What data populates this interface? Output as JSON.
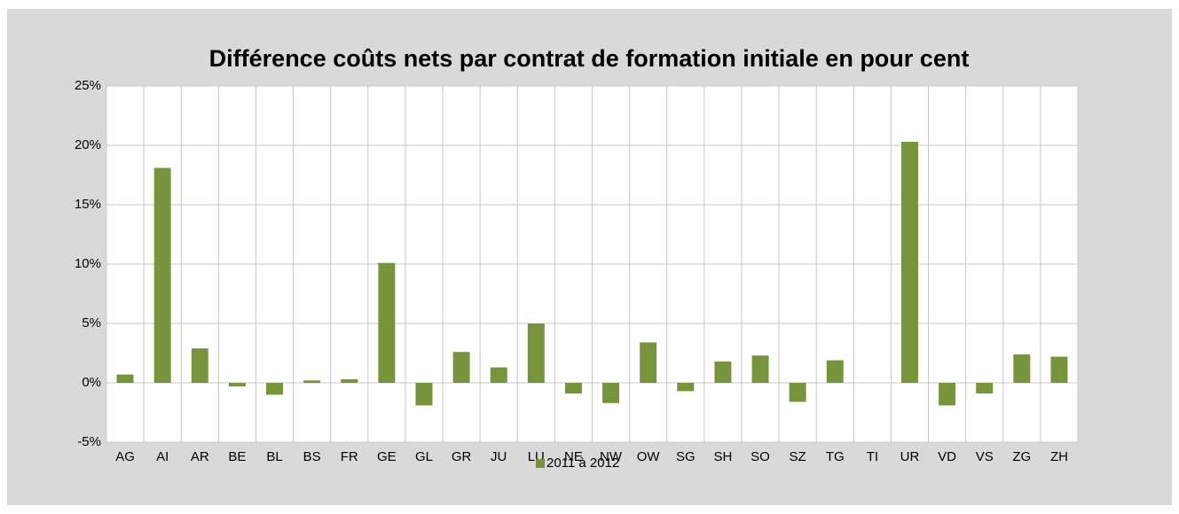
{
  "chart_data": {
    "type": "bar",
    "title": "Différence coûts nets par contrat de formation initiale en pour cent",
    "categories": [
      "AG",
      "AI",
      "AR",
      "BE",
      "BL",
      "BS",
      "FR",
      "GE",
      "GL",
      "GR",
      "JU",
      "LU",
      "NE",
      "NW",
      "OW",
      "SG",
      "SH",
      "SO",
      "SZ",
      "TG",
      "TI",
      "UR",
      "VD",
      "VS",
      "ZG",
      "ZH"
    ],
    "series": [
      {
        "name": "2011 à 2012",
        "color": "#77933c",
        "values": [
          0.7,
          18.1,
          2.9,
          -0.3,
          -1.0,
          0.2,
          0.3,
          10.1,
          -1.9,
          2.6,
          1.3,
          5.0,
          -0.9,
          -1.7,
          3.4,
          -0.7,
          1.8,
          2.3,
          -1.6,
          1.9,
          0,
          20.3,
          -1.9,
          -0.9,
          2.4,
          2.2
        ]
      }
    ],
    "ylim": [
      -5,
      25
    ],
    "yticks": [
      {
        "value": -5,
        "label": "-5%"
      },
      {
        "value": 0,
        "label": "0%"
      },
      {
        "value": 5,
        "label": "5%"
      },
      {
        "value": 10,
        "label": "10%"
      },
      {
        "value": 15,
        "label": "15%"
      },
      {
        "value": 20,
        "label": "20%"
      },
      {
        "value": 25,
        "label": "25%"
      }
    ],
    "grid": true,
    "legend": "bottom"
  }
}
